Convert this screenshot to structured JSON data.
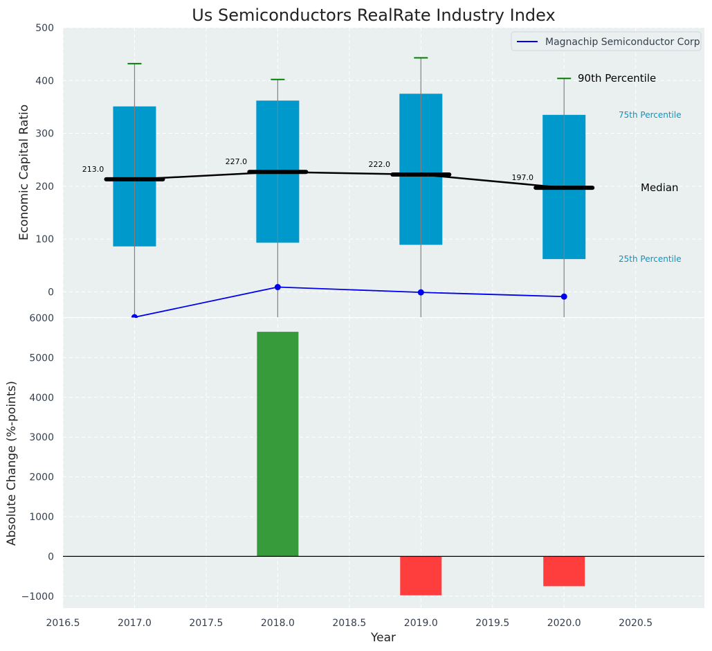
{
  "chart_data": [
    {
      "type": "box",
      "title": "Us Semiconductors RealRate Industry Index",
      "xlabel": "",
      "ylabel": "Economic Capital Ratio",
      "ylim": [
        -48,
        500
      ],
      "yticks": [
        0,
        100,
        200,
        300,
        400,
        500
      ],
      "categories": [
        2017.0,
        2018.0,
        2019.0,
        2020.0
      ],
      "boxes": [
        {
          "x": 2017.0,
          "p25": 86,
          "p75": 351,
          "median": 213,
          "p90": 432,
          "median_label": "213.0"
        },
        {
          "x": 2018.0,
          "p25": 93,
          "p75": 362,
          "median": 227,
          "p90": 402,
          "median_label": "227.0"
        },
        {
          "x": 2019.0,
          "p25": 89,
          "p75": 375,
          "median": 222,
          "p90": 443,
          "median_label": "222.0"
        },
        {
          "x": 2020.0,
          "p25": 62,
          "p75": 335,
          "median": 197,
          "p90": 404,
          "median_label": "197.0"
        }
      ],
      "series": [
        {
          "name": "Magnachip Semiconductor Corp",
          "values": [
            -48,
            9,
            -1,
            -9
          ]
        }
      ],
      "annotations": {
        "p90": "90th Percentile",
        "p75": "75th Percentile",
        "median": "Median",
        "p25": "25th Percentile"
      },
      "legend": "top-right",
      "grid": true,
      "colors": {
        "box": "#0099cc",
        "median": "#000000",
        "p90_cap": "#008000",
        "company": "#0000ee",
        "background": "#eaeff0"
      }
    },
    {
      "type": "bar",
      "xlabel": "Year",
      "ylabel": "Absolute Change (%-points)",
      "xlim": [
        2016.5,
        2020.98
      ],
      "ylim": [
        -1300,
        6000
      ],
      "xticks": [
        2016.5,
        2017.0,
        2017.5,
        2018.0,
        2018.5,
        2019.0,
        2019.5,
        2020.0,
        2020.5
      ],
      "yticks": [
        -1000,
        0,
        1000,
        2000,
        3000,
        4000,
        5000,
        6000
      ],
      "x": [
        2018.0,
        2019.0,
        2020.0
      ],
      "values": [
        5650,
        -980,
        -750
      ],
      "grid": true,
      "colors": {
        "positive": "#2e9630",
        "negative": "#ff3333"
      }
    }
  ]
}
